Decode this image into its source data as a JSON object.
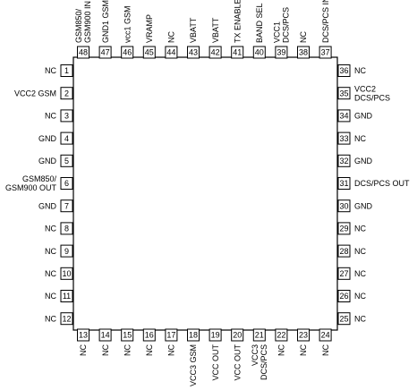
{
  "package": {
    "left_pins": [
      {
        "num": "1",
        "label": [
          "NC"
        ]
      },
      {
        "num": "2",
        "label": [
          "VCC2 GSM"
        ]
      },
      {
        "num": "3",
        "label": [
          "NC"
        ]
      },
      {
        "num": "4",
        "label": [
          "GND"
        ]
      },
      {
        "num": "5",
        "label": [
          "GND"
        ]
      },
      {
        "num": "6",
        "label": [
          "GSM850/",
          "GSM900 OUT"
        ]
      },
      {
        "num": "7",
        "label": [
          "GND"
        ]
      },
      {
        "num": "8",
        "label": [
          "NC"
        ]
      },
      {
        "num": "9",
        "label": [
          "NC"
        ]
      },
      {
        "num": "10",
        "label": [
          "NC"
        ]
      },
      {
        "num": "11",
        "label": [
          "NC"
        ]
      },
      {
        "num": "12",
        "label": [
          "NC"
        ]
      }
    ],
    "bottom_pins": [
      {
        "num": "13",
        "label": [
          "NC"
        ]
      },
      {
        "num": "14",
        "label": [
          "NC"
        ]
      },
      {
        "num": "15",
        "label": [
          "NC"
        ]
      },
      {
        "num": "16",
        "label": [
          "NC"
        ]
      },
      {
        "num": "17",
        "label": [
          "NC"
        ]
      },
      {
        "num": "18",
        "label": [
          "VCC3 GSM"
        ]
      },
      {
        "num": "19",
        "label": [
          "VCC OUT"
        ]
      },
      {
        "num": "20",
        "label": [
          "VCC OUT"
        ]
      },
      {
        "num": "21",
        "label": [
          "VCC3",
          "DCS/PCS"
        ]
      },
      {
        "num": "22",
        "label": [
          "NC"
        ]
      },
      {
        "num": "23",
        "label": [
          "NC"
        ]
      },
      {
        "num": "24",
        "label": [
          "NC"
        ]
      }
    ],
    "right_pins": [
      {
        "num": "36",
        "label": [
          "NC"
        ]
      },
      {
        "num": "35",
        "label": [
          "VCC2",
          "DCS/PCS"
        ]
      },
      {
        "num": "34",
        "label": [
          "GND"
        ]
      },
      {
        "num": "33",
        "label": [
          "NC"
        ]
      },
      {
        "num": "32",
        "label": [
          "GND"
        ]
      },
      {
        "num": "31",
        "label": [
          "DCS/PCS OUT"
        ]
      },
      {
        "num": "30",
        "label": [
          "GND"
        ]
      },
      {
        "num": "29",
        "label": [
          "NC"
        ]
      },
      {
        "num": "28",
        "label": [
          "NC"
        ]
      },
      {
        "num": "27",
        "label": [
          "NC"
        ]
      },
      {
        "num": "26",
        "label": [
          "NC"
        ]
      },
      {
        "num": "25",
        "label": [
          "NC"
        ]
      }
    ],
    "top_pins": [
      {
        "num": "48",
        "label": [
          "GSM850/",
          "GSM900 IN"
        ]
      },
      {
        "num": "47",
        "label": [
          "GND1 GSM"
        ]
      },
      {
        "num": "46",
        "label": [
          "vcc1 GSM"
        ]
      },
      {
        "num": "45",
        "label": [
          "VRAMP"
        ]
      },
      {
        "num": "44",
        "label": [
          "NC"
        ]
      },
      {
        "num": "43",
        "label": [
          "VBATT"
        ]
      },
      {
        "num": "42",
        "label": [
          "VBATT"
        ]
      },
      {
        "num": "41",
        "label": [
          "TX ENABLE"
        ]
      },
      {
        "num": "40",
        "label": [
          "BAND SEL"
        ]
      },
      {
        "num": "39",
        "label": [
          "VCC1",
          "DCS/PCS"
        ]
      },
      {
        "num": "38",
        "label": [
          "NC"
        ]
      },
      {
        "num": "37",
        "label": [
          "DCS/PCS IN"
        ]
      }
    ]
  }
}
